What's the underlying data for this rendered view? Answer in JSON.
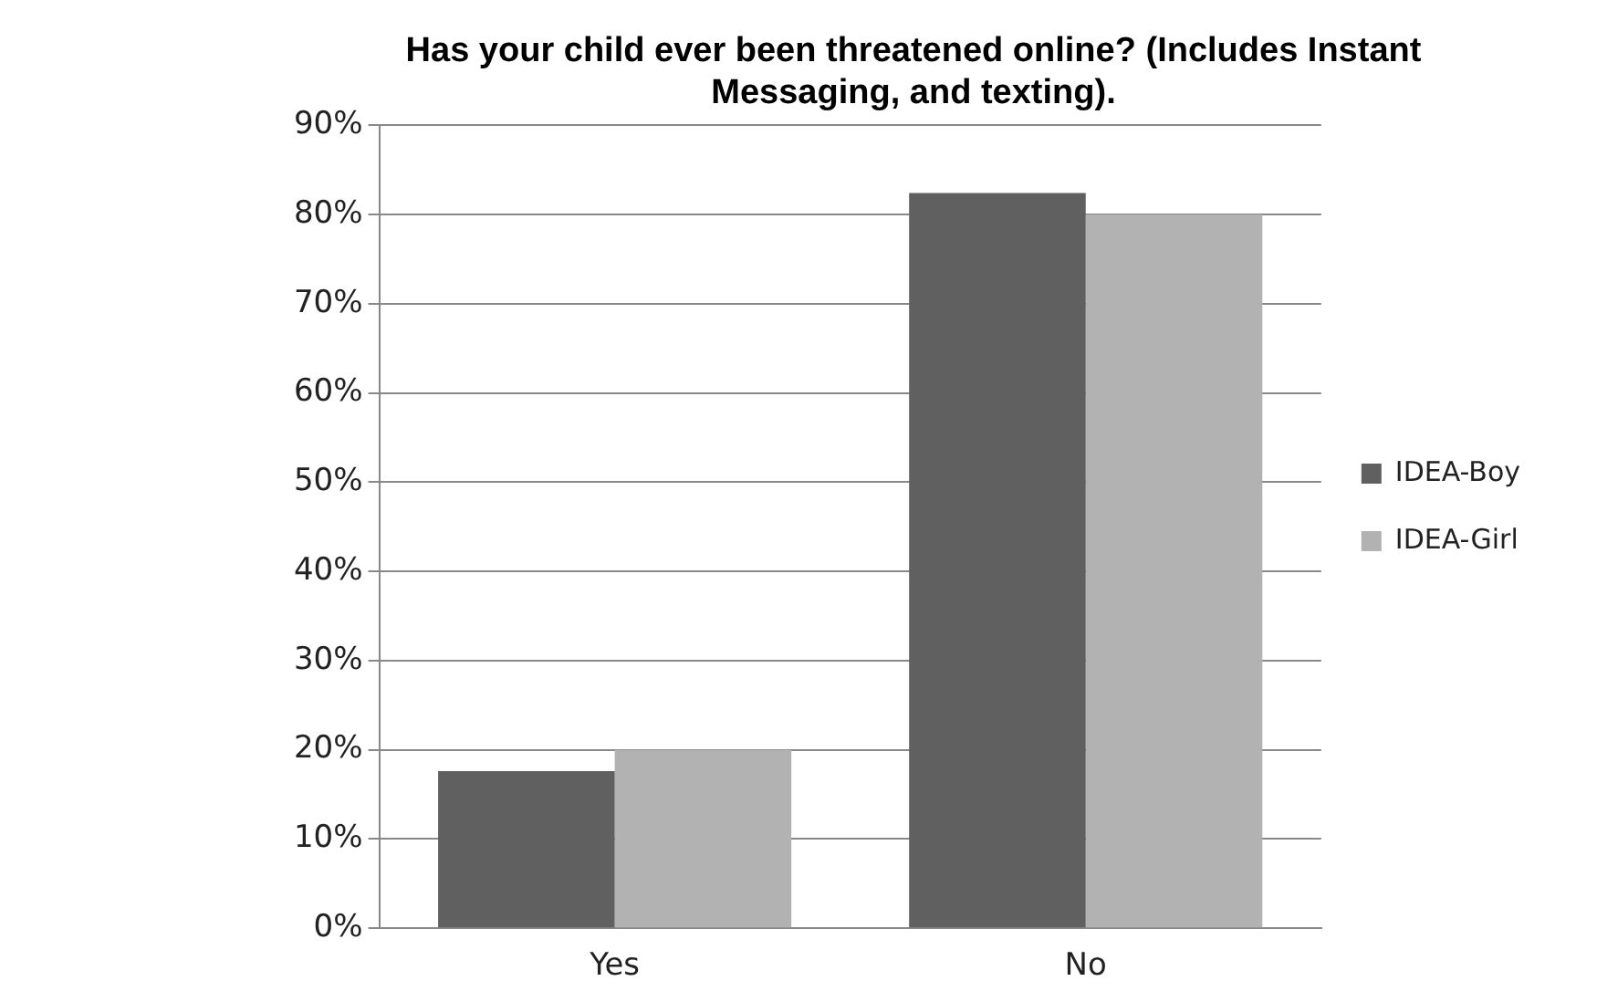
{
  "chart_data": {
    "type": "bar",
    "title": "Has your child ever been threatened online? (Includes Instant Messaging, and texting).",
    "categories": [
      "Yes",
      "No"
    ],
    "series": [
      {
        "name": "IDEA-Boy",
        "color": "#606060",
        "values": [
          17.6,
          82.4
        ]
      },
      {
        "name": "IDEA-Girl",
        "color": "#b2b2b2",
        "values": [
          20,
          80
        ]
      }
    ],
    "ylim": [
      0,
      90
    ],
    "yticks": [
      {
        "value": 0,
        "label": "0%"
      },
      {
        "value": 10,
        "label": "10%"
      },
      {
        "value": 20,
        "label": "20%"
      },
      {
        "value": 30,
        "label": "30%"
      },
      {
        "value": 40,
        "label": "40%"
      },
      {
        "value": 50,
        "label": "50%"
      },
      {
        "value": 60,
        "label": "60%"
      },
      {
        "value": 70,
        "label": "70%"
      },
      {
        "value": 80,
        "label": "80%"
      },
      {
        "value": 90,
        "label": "90%"
      }
    ],
    "grid": "y",
    "legend": "right"
  }
}
